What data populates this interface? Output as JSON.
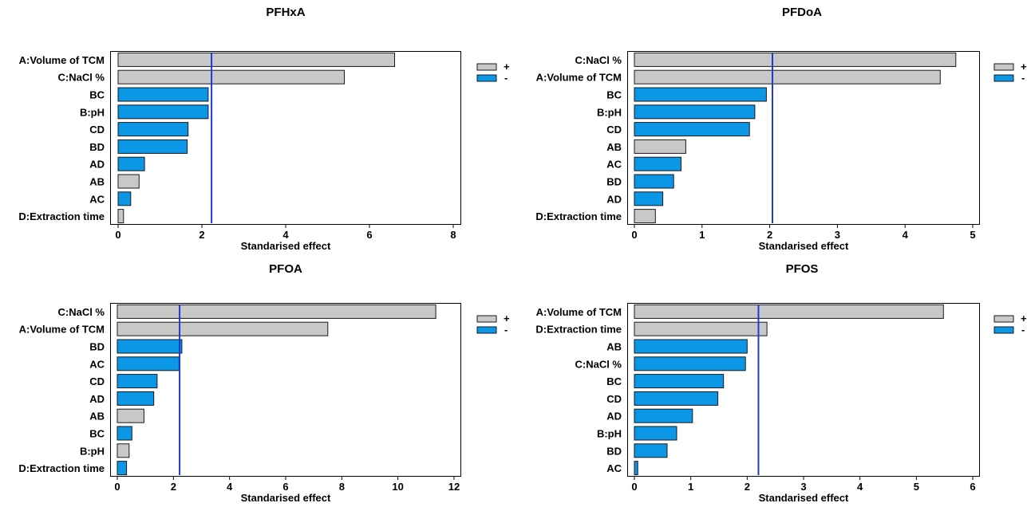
{
  "colors": {
    "positive": "#c8c8c8",
    "negative": "#0b96e6",
    "significance_line": "#1f3bd6",
    "bar_stroke": "#1a1a1a"
  },
  "legend": {
    "positive_label": "+",
    "negative_label": "-"
  },
  "chart_data": [
    {
      "type": "bar",
      "orientation": "horizontal",
      "title": "PFHxA",
      "xlabel": "Standarised effect",
      "xlim": [
        0,
        8
      ],
      "xticks": [
        "0",
        "2",
        "4",
        "6",
        "8"
      ],
      "significance_line": 2.23,
      "bars": [
        {
          "label": "A:Volume of TCM",
          "value": 6.6,
          "sign": "+"
        },
        {
          "label": "C:NaCl %",
          "value": 5.4,
          "sign": "+"
        },
        {
          "label": "BC",
          "value": 2.15,
          "sign": "-"
        },
        {
          "label": "B:pH",
          "value": 2.15,
          "sign": "-"
        },
        {
          "label": "CD",
          "value": 1.67,
          "sign": "-"
        },
        {
          "label": "BD",
          "value": 1.65,
          "sign": "-"
        },
        {
          "label": "AD",
          "value": 0.63,
          "sign": "-"
        },
        {
          "label": "AB",
          "value": 0.5,
          "sign": "+"
        },
        {
          "label": "AC",
          "value": 0.3,
          "sign": "-"
        },
        {
          "label": "D:Extraction time",
          "value": 0.13,
          "sign": "+"
        }
      ]
    },
    {
      "type": "bar",
      "orientation": "horizontal",
      "title": "PFDoA",
      "xlabel": "Standarised effect",
      "xlim": [
        0,
        5
      ],
      "xticks": [
        "0",
        "1",
        "2",
        "3",
        "4",
        "5"
      ],
      "significance_line": 2.04,
      "bars": [
        {
          "label": "C:NaCl %",
          "value": 4.75,
          "sign": "+"
        },
        {
          "label": "A:Volume of TCM",
          "value": 4.52,
          "sign": "+"
        },
        {
          "label": "BC",
          "value": 1.95,
          "sign": "-"
        },
        {
          "label": "B:pH",
          "value": 1.78,
          "sign": "-"
        },
        {
          "label": "CD",
          "value": 1.7,
          "sign": "-"
        },
        {
          "label": "AB",
          "value": 0.76,
          "sign": "+"
        },
        {
          "label": "AC",
          "value": 0.69,
          "sign": "-"
        },
        {
          "label": "BD",
          "value": 0.58,
          "sign": "-"
        },
        {
          "label": "AD",
          "value": 0.42,
          "sign": "-"
        },
        {
          "label": "D:Extraction time",
          "value": 0.31,
          "sign": "+"
        }
      ]
    },
    {
      "type": "bar",
      "orientation": "horizontal",
      "title": "PFOA",
      "xlabel": "Standarised effect",
      "xlim": [
        0,
        12
      ],
      "xticks": [
        "0",
        "2",
        "4",
        "6",
        "8",
        "10",
        "12"
      ],
      "significance_line": 2.22,
      "bars": [
        {
          "label": "C:NaCl %",
          "value": 11.35,
          "sign": "+"
        },
        {
          "label": "A:Volume of TCM",
          "value": 7.5,
          "sign": "+"
        },
        {
          "label": "BD",
          "value": 2.3,
          "sign": "-"
        },
        {
          "label": "AC",
          "value": 2.2,
          "sign": "-"
        },
        {
          "label": "CD",
          "value": 1.42,
          "sign": "-"
        },
        {
          "label": "AD",
          "value": 1.3,
          "sign": "-"
        },
        {
          "label": "AB",
          "value": 0.95,
          "sign": "+"
        },
        {
          "label": "BC",
          "value": 0.52,
          "sign": "-"
        },
        {
          "label": "B:pH",
          "value": 0.42,
          "sign": "+"
        },
        {
          "label": "D:Extraction time",
          "value": 0.33,
          "sign": "-"
        }
      ]
    },
    {
      "type": "bar",
      "orientation": "horizontal",
      "title": "PFOS",
      "xlabel": "Standarised effect",
      "xlim": [
        0,
        6
      ],
      "xticks": [
        "0",
        "1",
        "2",
        "3",
        "4",
        "5",
        "6"
      ],
      "significance_line": 2.2,
      "bars": [
        {
          "label": "A:Volume of TCM",
          "value": 5.48,
          "sign": "+"
        },
        {
          "label": "D:Extraction time",
          "value": 2.35,
          "sign": "+"
        },
        {
          "label": "AB",
          "value": 2.0,
          "sign": "-"
        },
        {
          "label": "C:NaCl %",
          "value": 1.97,
          "sign": "-"
        },
        {
          "label": "BC",
          "value": 1.58,
          "sign": "-"
        },
        {
          "label": "CD",
          "value": 1.48,
          "sign": "-"
        },
        {
          "label": "AD",
          "value": 1.03,
          "sign": "-"
        },
        {
          "label": "B:pH",
          "value": 0.75,
          "sign": "-"
        },
        {
          "label": "BD",
          "value": 0.58,
          "sign": "-"
        },
        {
          "label": "AC",
          "value": 0.06,
          "sign": "-"
        }
      ]
    }
  ]
}
